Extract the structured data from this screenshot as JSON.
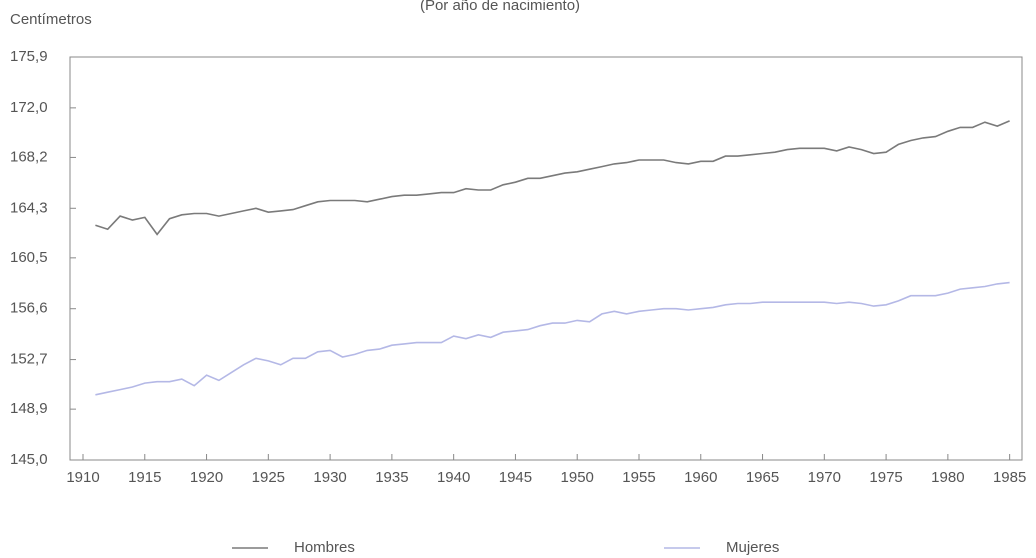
{
  "chart_data": {
    "type": "line",
    "subtitle": "(Por año de nacimiento)",
    "y_label": "Centímetros",
    "x": [
      1911,
      1912,
      1913,
      1914,
      1915,
      1916,
      1917,
      1918,
      1919,
      1920,
      1921,
      1922,
      1923,
      1924,
      1925,
      1926,
      1927,
      1928,
      1929,
      1930,
      1931,
      1932,
      1933,
      1934,
      1935,
      1936,
      1937,
      1938,
      1939,
      1940,
      1941,
      1942,
      1943,
      1944,
      1945,
      1946,
      1947,
      1948,
      1949,
      1950,
      1951,
      1952,
      1953,
      1954,
      1955,
      1956,
      1957,
      1958,
      1959,
      1960,
      1961,
      1962,
      1963,
      1964,
      1965,
      1966,
      1967,
      1968,
      1969,
      1970,
      1971,
      1972,
      1973,
      1974,
      1975,
      1976,
      1977,
      1978,
      1979,
      1980,
      1981,
      1982,
      1983,
      1984,
      1985
    ],
    "series": [
      {
        "name": "Hombres",
        "color": "#7a7a7a",
        "values": [
          163.0,
          162.7,
          163.7,
          163.4,
          163.6,
          162.3,
          163.5,
          163.8,
          163.9,
          163.9,
          163.7,
          163.9,
          164.1,
          164.3,
          164.0,
          164.1,
          164.2,
          164.5,
          164.8,
          164.9,
          164.9,
          164.9,
          164.8,
          165.0,
          165.2,
          165.3,
          165.3,
          165.4,
          165.5,
          165.5,
          165.8,
          165.7,
          165.7,
          166.1,
          166.3,
          166.6,
          166.6,
          166.8,
          167.0,
          167.1,
          167.3,
          167.5,
          167.7,
          167.8,
          168.0,
          168.0,
          168.0,
          167.8,
          167.7,
          167.9,
          167.9,
          168.3,
          168.3,
          168.4,
          168.5,
          168.6,
          168.8,
          168.9,
          168.9,
          168.9,
          168.7,
          169.0,
          168.8,
          168.5,
          168.6,
          169.2,
          169.5,
          169.7,
          169.8,
          170.2,
          170.5,
          170.5,
          170.9,
          170.6,
          171.0
        ]
      },
      {
        "name": "Mujeres",
        "color": "#b4b8e6",
        "values": [
          150.0,
          150.2,
          150.4,
          150.6,
          150.9,
          151.0,
          151.0,
          151.2,
          150.7,
          151.5,
          151.1,
          151.7,
          152.3,
          152.8,
          152.6,
          152.3,
          152.8,
          152.8,
          153.3,
          153.4,
          152.9,
          153.1,
          153.4,
          153.5,
          153.8,
          153.9,
          154.0,
          154.0,
          154.0,
          154.5,
          154.3,
          154.6,
          154.4,
          154.8,
          154.9,
          155.0,
          155.3,
          155.5,
          155.5,
          155.7,
          155.6,
          156.2,
          156.4,
          156.2,
          156.4,
          156.5,
          156.6,
          156.6,
          156.5,
          156.6,
          156.7,
          156.9,
          157.0,
          157.0,
          157.1,
          157.1,
          157.1,
          157.1,
          157.1,
          157.1,
          157.0,
          157.1,
          157.0,
          156.8,
          156.9,
          157.2,
          157.6,
          157.6,
          157.6,
          157.8,
          158.1,
          158.2,
          158.3,
          158.5,
          158.6
        ]
      }
    ],
    "xlim": [
      1910,
      1986
    ],
    "xticks": [
      1910,
      1915,
      1920,
      1925,
      1930,
      1935,
      1940,
      1945,
      1950,
      1955,
      1960,
      1965,
      1970,
      1975,
      1980,
      1985
    ],
    "ylim": [
      145.0,
      175.9
    ],
    "yticks": [
      {
        "value": 145.0,
        "label": "145,0"
      },
      {
        "value": 148.9,
        "label": "148,9"
      },
      {
        "value": 152.7,
        "label": "152,7"
      },
      {
        "value": 156.6,
        "label": "156,6"
      },
      {
        "value": 160.5,
        "label": "160,5"
      },
      {
        "value": 164.3,
        "label": "164,3"
      },
      {
        "value": 168.2,
        "label": "168,2"
      },
      {
        "value": 172.0,
        "label": "172,0"
      },
      {
        "value": 175.9,
        "label": "175,9"
      }
    ],
    "legend": "bottom"
  }
}
